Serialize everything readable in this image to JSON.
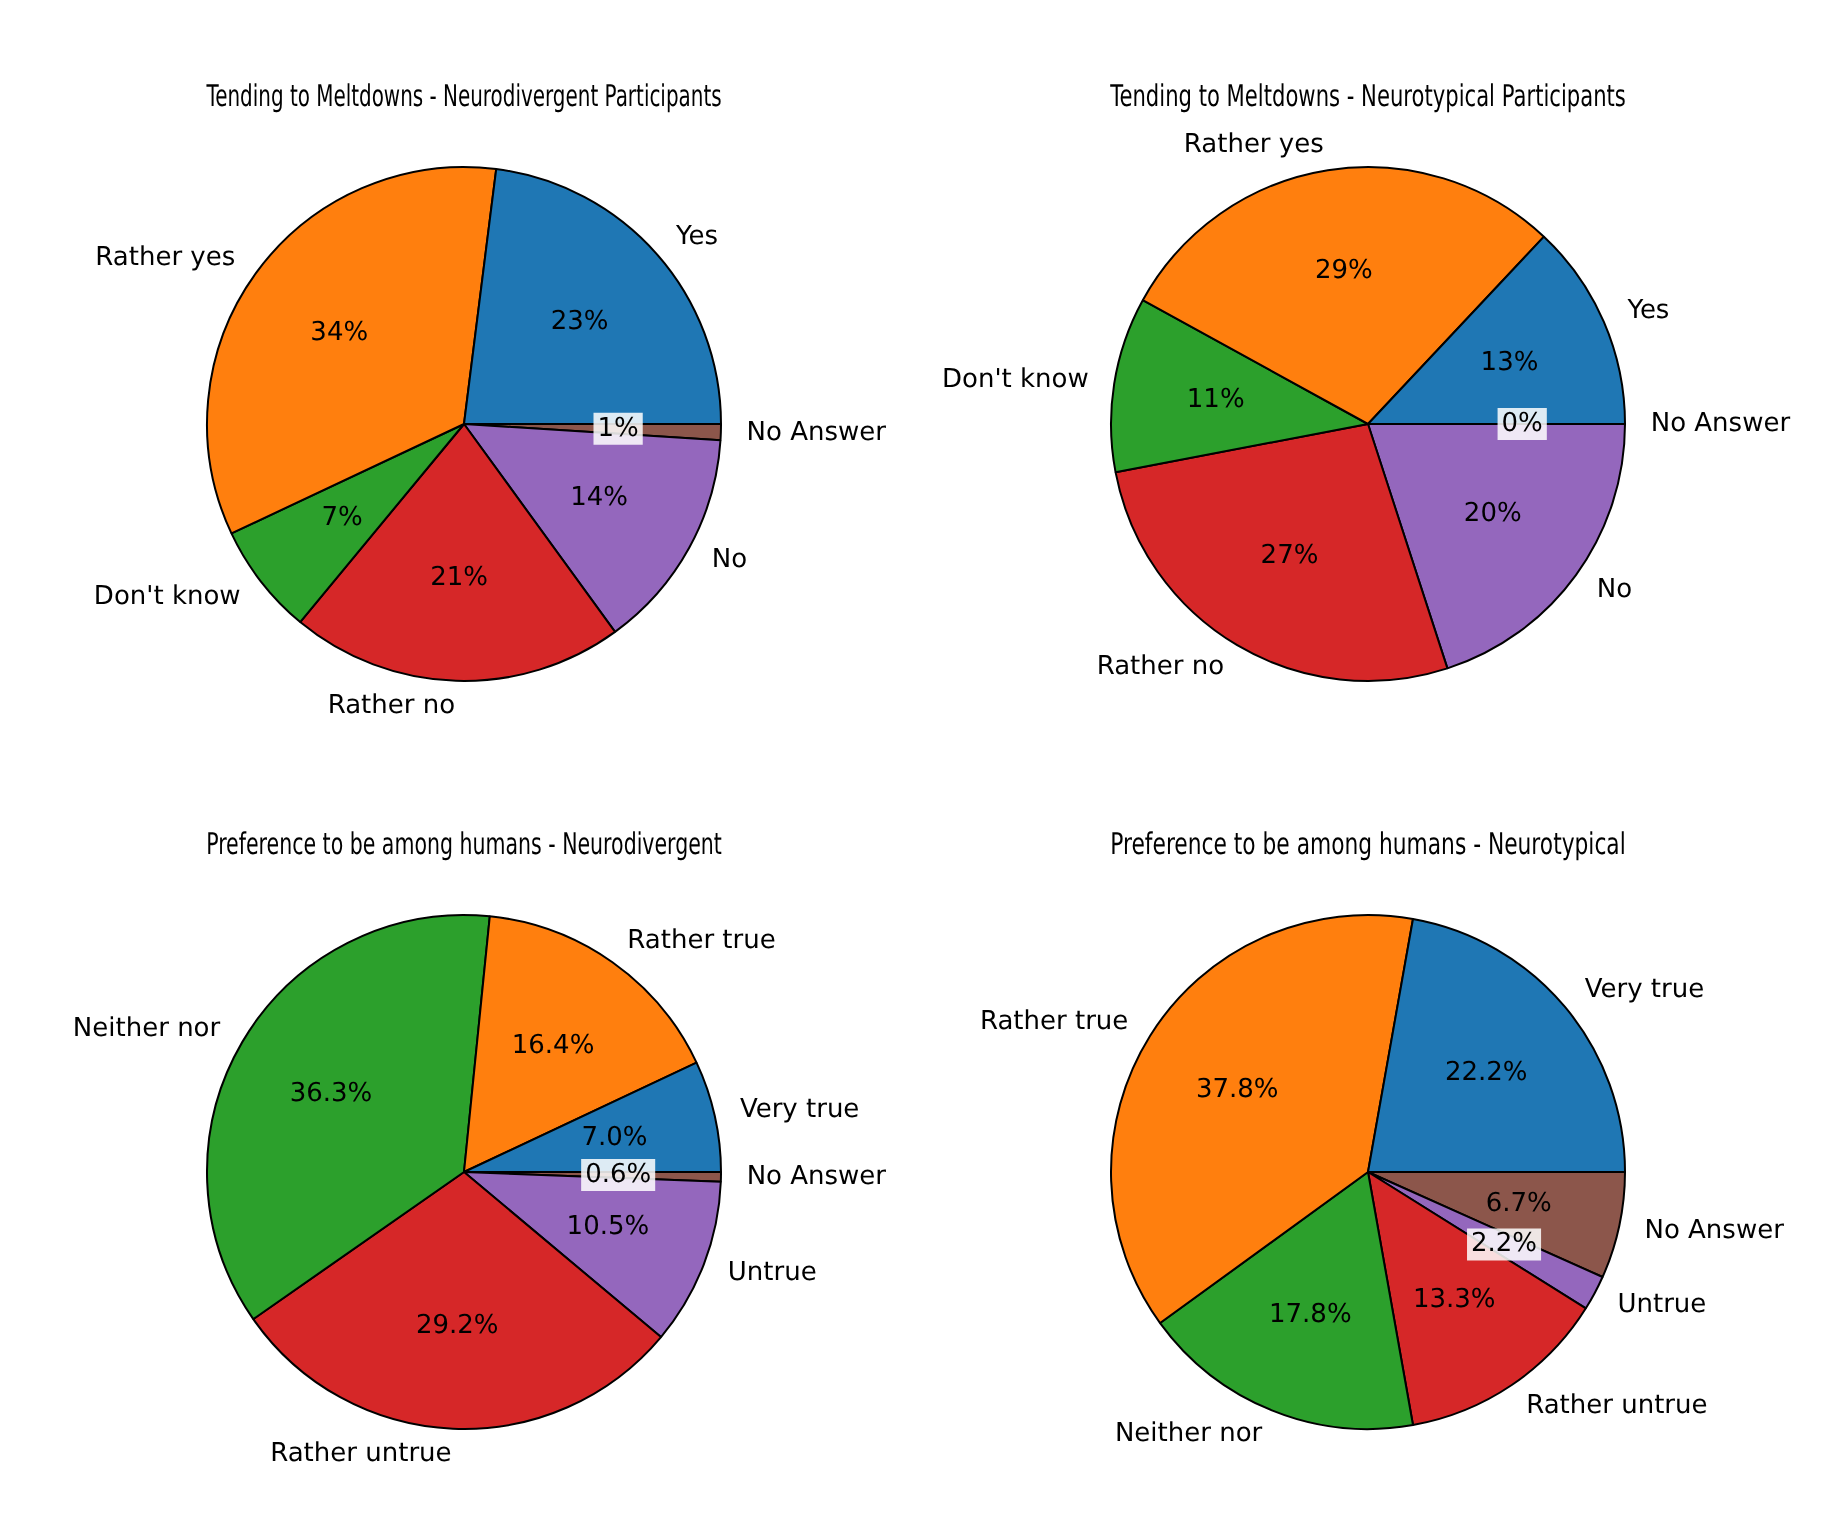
{
  "chart_data": [
    {
      "type": "pie",
      "title": "Tending to Meltdowns - Neurodivergent Participants",
      "categories": [
        "Yes",
        "Rather yes",
        "Don't know",
        "Rather no",
        "No",
        "No Answer"
      ],
      "values": [
        23,
        34,
        7,
        21,
        14,
        1
      ],
      "value_labels": [
        "23%",
        "34%",
        "7%",
        "21%",
        "14%",
        "1%"
      ],
      "colors": [
        "#1f77b4",
        "#ff7f0e",
        "#2ca02c",
        "#d62728",
        "#9467bd",
        "#8c564b"
      ],
      "legend": false
    },
    {
      "type": "pie",
      "title": "Tending to Meltdowns - Neurotypical Participants",
      "categories": [
        "Yes",
        "Rather yes",
        "Don't know",
        "Rather no",
        "No",
        "No Answer"
      ],
      "values": [
        13,
        29,
        11,
        27,
        20,
        0
      ],
      "value_labels": [
        "13%",
        "29%",
        "11%",
        "27%",
        "20%",
        "0%"
      ],
      "colors": [
        "#1f77b4",
        "#ff7f0e",
        "#2ca02c",
        "#d62728",
        "#9467bd",
        "#8c564b"
      ],
      "legend": false
    },
    {
      "type": "pie",
      "title": "Preference to be among humans - Neurodivergent",
      "categories": [
        "Very true",
        "Rather true",
        "Neither nor",
        "Rather untrue",
        "Untrue",
        "No Answer"
      ],
      "values": [
        7.0,
        16.4,
        36.3,
        29.2,
        10.5,
        0.6
      ],
      "value_labels": [
        "7.0%",
        "16.4%",
        "36.3%",
        "29.2%",
        "10.5%",
        "0.6%"
      ],
      "colors": [
        "#1f77b4",
        "#ff7f0e",
        "#2ca02c",
        "#d62728",
        "#9467bd",
        "#8c564b"
      ],
      "legend": false
    },
    {
      "type": "pie",
      "title": "Preference to be among humans - Neurotypical",
      "categories": [
        "Very true",
        "Rather true",
        "Neither nor",
        "Rather untrue",
        "Untrue",
        "No Answer"
      ],
      "values": [
        22.2,
        37.8,
        17.8,
        13.3,
        2.2,
        6.7
      ],
      "value_labels": [
        "22.2%",
        "37.8%",
        "17.8%",
        "13.3%",
        "2.2%",
        "6.7%"
      ],
      "colors": [
        "#1f77b4",
        "#ff7f0e",
        "#2ca02c",
        "#d62728",
        "#9467bd",
        "#8c564b"
      ],
      "legend": false
    }
  ]
}
